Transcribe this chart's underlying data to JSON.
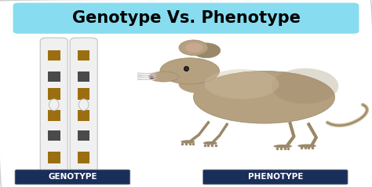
{
  "title": "Genotype Vs. Phenotype",
  "title_bg": "#87DDEF",
  "title_color": "#000000",
  "title_fontsize": 15,
  "label_left": "GENOTYPE",
  "label_right": "PHENOTYPE",
  "label_bg": "#1a2e5a",
  "label_color": "#ffffff",
  "label_fontsize": 7.5,
  "bg_color": "#ffffff",
  "border_color": "#aaaaaa",
  "chrom_body": "#f0f0f0",
  "chrom_edge": "#bbbbbb",
  "band_brown": "#9B6F10",
  "band_grey": "#4a4a4a",
  "band_lgrey": "#aaaaaa",
  "mouse_body": "#b5a080",
  "mouse_dark": "#9a8868",
  "mouse_light": "#d0c0a0",
  "fig_width": 4.74,
  "fig_height": 2.38
}
